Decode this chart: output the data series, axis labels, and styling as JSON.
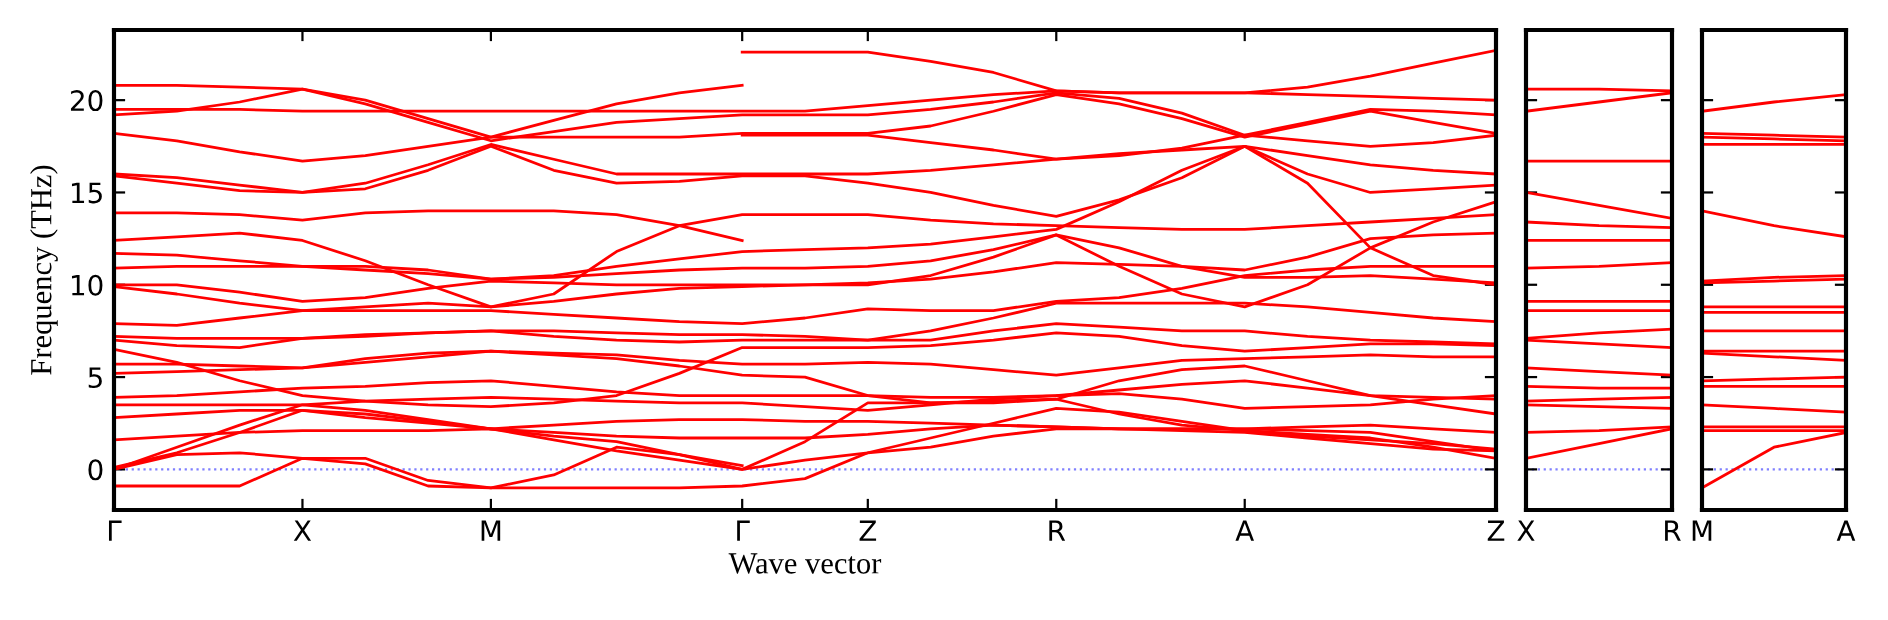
{
  "chart_data": [
    {
      "type": "line",
      "ylabel": "Frequency (THz)",
      "xlabel": "Wave vector",
      "color": "#ff0000",
      "line_style": "solid",
      "marker": "none",
      "grid": false,
      "legend": false,
      "categories": [
        "Γ",
        null,
        null,
        "X",
        null,
        null,
        "M",
        null,
        null,
        null,
        "Γ",
        null,
        "Z",
        null,
        null,
        "R",
        null,
        null,
        "A",
        null,
        null,
        null,
        "Z"
      ],
      "ylim": [
        -2.2,
        23.8
      ],
      "yticks": [
        0,
        5,
        10,
        15,
        20
      ],
      "ref_lines": [
        {
          "axis": "y",
          "value": 0,
          "color": "#8080ff",
          "line_style": "dotted"
        }
      ],
      "series": [
        {
          "values": [
            20.8,
            20.8,
            20.7,
            20.6,
            20.0,
            19.0,
            18.0,
            18.9,
            19.8,
            20.4,
            20.8,
            null,
            null,
            null,
            null,
            null,
            null,
            null,
            null,
            null,
            null,
            null,
            null
          ]
        },
        {
          "values": [
            null,
            null,
            null,
            null,
            null,
            null,
            null,
            null,
            null,
            null,
            22.6,
            22.6,
            22.6,
            22.1,
            21.5,
            20.5,
            20.4,
            20.4,
            20.4,
            20.7,
            21.3,
            22.0,
            22.7
          ]
        },
        {
          "values": [
            19.5,
            19.5,
            19.5,
            19.4,
            19.4,
            19.4,
            19.4,
            19.4,
            19.4,
            19.4,
            19.4,
            19.4,
            19.7,
            20.0,
            20.3,
            20.5,
            20.4,
            20.4,
            20.4,
            20.3,
            20.2,
            20.1,
            20.0
          ]
        },
        {
          "values": [
            19.2,
            19.4,
            19.9,
            20.6,
            19.8,
            18.8,
            17.8,
            18.3,
            18.8,
            19.0,
            19.2,
            19.2,
            19.2,
            19.5,
            19.9,
            20.4,
            20.1,
            19.3,
            18.1,
            18.8,
            19.5,
            19.4,
            19.2
          ]
        },
        {
          "values": [
            18.2,
            17.8,
            17.2,
            16.7,
            17.0,
            17.5,
            18.0,
            18.0,
            18.0,
            18.0,
            18.2,
            18.2,
            18.2,
            18.6,
            19.4,
            20.3,
            19.8,
            19.0,
            18.0,
            18.7,
            19.4,
            18.8,
            18.2
          ]
        },
        {
          "values": [
            null,
            null,
            null,
            null,
            null,
            null,
            null,
            null,
            null,
            null,
            18.1,
            18.1,
            18.1,
            17.7,
            17.3,
            16.8,
            17.0,
            17.4,
            18.1,
            17.8,
            17.5,
            17.7,
            18.1
          ]
        },
        {
          "values": [
            16.0,
            15.8,
            15.4,
            15.0,
            15.5,
            16.5,
            17.6,
            16.8,
            16.0,
            16.0,
            16.0,
            16.0,
            16.0,
            16.2,
            16.5,
            16.8,
            17.1,
            17.3,
            17.5,
            17.0,
            16.5,
            16.2,
            16.0
          ]
        },
        {
          "values": [
            15.9,
            15.5,
            15.1,
            15.0,
            15.2,
            16.2,
            17.5,
            16.2,
            15.5,
            15.6,
            15.9,
            15.9,
            15.5,
            15.0,
            14.3,
            13.7,
            14.6,
            15.8,
            17.5,
            16.0,
            15.0,
            15.2,
            15.4
          ]
        },
        {
          "values": [
            13.9,
            13.9,
            13.8,
            13.5,
            13.9,
            14.0,
            14.0,
            14.0,
            13.8,
            13.2,
            12.4,
            null,
            null,
            null,
            null,
            null,
            null,
            null,
            null,
            null,
            null,
            null,
            null
          ]
        },
        {
          "values": [
            12.4,
            12.6,
            12.8,
            12.4,
            11.3,
            10.0,
            8.8,
            9.5,
            11.8,
            13.2,
            13.8,
            13.8,
            13.8,
            13.5,
            13.3,
            13.2,
            13.1,
            13.0,
            13.0,
            13.2,
            13.4,
            13.6,
            13.8
          ]
        },
        {
          "values": [
            11.7,
            11.6,
            11.3,
            11.0,
            11.0,
            10.8,
            10.3,
            10.5,
            11.0,
            11.4,
            11.8,
            11.9,
            12.0,
            12.2,
            12.6,
            13.0,
            14.5,
            16.2,
            17.5,
            15.5,
            12.0,
            10.5,
            10.0
          ]
        },
        {
          "values": [
            10.9,
            11.0,
            11.0,
            11.0,
            10.8,
            10.6,
            10.3,
            10.4,
            10.6,
            10.8,
            10.9,
            10.9,
            11.0,
            11.3,
            11.9,
            12.7,
            12.0,
            11.0,
            10.4,
            10.4,
            10.5,
            10.3,
            10.1
          ]
        },
        {
          "values": [
            10.0,
            10.0,
            9.6,
            9.1,
            9.3,
            9.8,
            10.2,
            10.1,
            10.0,
            10.0,
            10.0,
            10.0,
            10.0,
            10.5,
            11.5,
            12.7,
            11.0,
            9.5,
            8.8,
            10.0,
            12.0,
            13.4,
            14.5
          ]
        },
        {
          "values": [
            9.9,
            9.5,
            9.0,
            8.6,
            8.8,
            9.0,
            8.8,
            9.1,
            9.5,
            9.8,
            9.9,
            10.0,
            10.1,
            10.3,
            10.7,
            11.2,
            11.1,
            11.0,
            10.8,
            11.5,
            12.5,
            12.7,
            12.8
          ]
        },
        {
          "values": [
            7.9,
            7.8,
            8.2,
            8.6,
            8.6,
            8.6,
            8.6,
            8.4,
            8.2,
            8.0,
            7.9,
            8.2,
            8.7,
            8.6,
            8.6,
            9.1,
            9.3,
            9.8,
            10.5,
            10.8,
            11.0,
            11.0,
            11.0
          ]
        },
        {
          "values": [
            7.2,
            7.1,
            7.1,
            7.1,
            7.2,
            7.4,
            7.5,
            7.5,
            7.4,
            7.3,
            7.3,
            7.2,
            7.0,
            7.5,
            8.2,
            9.0,
            9.0,
            9.0,
            9.0,
            8.8,
            8.5,
            8.2,
            8.0
          ]
        },
        {
          "values": [
            7.0,
            6.7,
            6.6,
            7.1,
            7.3,
            7.4,
            7.5,
            7.2,
            7.0,
            6.9,
            7.0,
            7.0,
            7.0,
            7.0,
            7.5,
            7.9,
            7.7,
            7.5,
            7.5,
            7.2,
            7.0,
            6.9,
            6.8
          ]
        },
        {
          "values": [
            6.5,
            5.8,
            4.8,
            4.0,
            3.7,
            3.5,
            3.4,
            3.6,
            4.0,
            5.2,
            6.6,
            6.6,
            6.6,
            6.7,
            7.0,
            7.4,
            7.2,
            6.7,
            6.4,
            6.6,
            6.8,
            6.8,
            6.7
          ]
        },
        {
          "values": [
            5.7,
            5.7,
            5.6,
            5.5,
            5.8,
            6.1,
            6.4,
            6.3,
            6.2,
            5.9,
            5.7,
            5.7,
            5.8,
            5.7,
            5.4,
            5.1,
            5.5,
            5.9,
            6.0,
            6.1,
            6.2,
            6.1,
            6.1
          ]
        },
        {
          "values": [
            5.2,
            5.3,
            5.4,
            5.5,
            6.0,
            6.3,
            6.4,
            6.2,
            6.0,
            5.6,
            5.1,
            5.0,
            4.0,
            3.6,
            3.6,
            3.8,
            4.8,
            5.4,
            5.6,
            4.8,
            4.0,
            3.9,
            3.8
          ]
        },
        {
          "values": [
            3.9,
            4.0,
            4.2,
            4.4,
            4.5,
            4.7,
            4.8,
            4.5,
            4.2,
            4.0,
            4.0,
            4.0,
            4.0,
            3.9,
            3.9,
            4.0,
            4.3,
            4.6,
            4.8,
            4.4,
            4.0,
            3.5,
            3.0
          ]
        },
        {
          "values": [
            3.5,
            3.5,
            3.5,
            3.5,
            3.7,
            3.8,
            3.9,
            3.8,
            3.7,
            3.6,
            3.6,
            3.4,
            3.2,
            3.5,
            3.8,
            4.0,
            4.1,
            3.8,
            3.3,
            3.4,
            3.5,
            3.8,
            4.0
          ]
        },
        {
          "values": [
            2.8,
            3.0,
            3.2,
            3.2,
            3.0,
            2.6,
            2.2,
            2.4,
            2.6,
            2.7,
            2.7,
            2.6,
            2.6,
            2.5,
            2.4,
            2.3,
            2.2,
            2.2,
            2.2,
            2.3,
            2.4,
            2.2,
            2.0
          ]
        },
        {
          "values": [
            1.6,
            1.8,
            2.0,
            2.1,
            2.1,
            2.1,
            2.2,
            2.0,
            1.8,
            1.7,
            1.7,
            1.7,
            1.9,
            2.2,
            2.4,
            2.3,
            2.2,
            2.2,
            2.2,
            2.1,
            2.0,
            1.5,
            1.0
          ]
        },
        {
          "values": [
            0,
            1.2,
            2.4,
            3.5,
            3.2,
            2.7,
            2.2,
            1.6,
            1.0,
            0.5,
            0,
            1.5,
            3.6,
            3.6,
            3.7,
            3.8,
            3.0,
            2.4,
            2.1,
            1.9,
            1.7,
            1.2,
            0.6
          ]
        },
        {
          "values": [
            0.1,
            0.9,
            2.0,
            3.2,
            2.8,
            2.5,
            2.2,
            1.8,
            1.5,
            0.8,
            0,
            0.5,
            0.9,
            1.7,
            2.5,
            3.3,
            3.1,
            2.6,
            2.1,
            1.8,
            1.6,
            1.4,
            1.1
          ]
        },
        {
          "values": [
            0,
            0.8,
            0.9,
            0.6,
            0.6,
            -0.6,
            -1.0,
            -0.3,
            1.2,
            0.8,
            0.2,
            null,
            null,
            null,
            null,
            null,
            null,
            null,
            null,
            null,
            null,
            null,
            null
          ]
        },
        {
          "values": [
            -0.9,
            -0.9,
            -0.9,
            0.6,
            0.3,
            -0.9,
            -1.0,
            -1.0,
            -1.0,
            -1.0,
            -0.9,
            -0.5,
            0.9,
            1.2,
            1.8,
            2.2,
            2.2,
            2.1,
            2.0,
            1.7,
            1.4,
            1.1,
            1.0
          ]
        }
      ]
    },
    {
      "type": "line",
      "color": "#ff0000",
      "line_style": "solid",
      "marker": "none",
      "grid": false,
      "legend": false,
      "tick_labels": "x",
      "categories": [
        "X",
        null,
        "R"
      ],
      "ylim": [
        -2.2,
        23.8
      ],
      "yticks": [
        {
          "value": 0,
          "label": null
        },
        {
          "value": 5,
          "label": null
        },
        {
          "value": 10,
          "label": null
        },
        {
          "value": 15,
          "label": null
        },
        {
          "value": 20,
          "label": null
        }
      ],
      "ref_lines": [
        {
          "axis": "y",
          "value": 0,
          "color": "#8080ff",
          "line_style": "dotted"
        }
      ],
      "series": [
        {
          "values": [
            20.6,
            20.6,
            20.5
          ]
        },
        {
          "values": [
            19.4,
            19.9,
            20.4
          ]
        },
        {
          "values": [
            16.7,
            16.7,
            16.7
          ]
        },
        {
          "values": [
            15.0,
            14.3,
            13.6
          ]
        },
        {
          "values": [
            13.4,
            13.2,
            13.1
          ]
        },
        {
          "values": [
            12.4,
            12.4,
            12.4
          ]
        },
        {
          "values": [
            10.9,
            11.0,
            11.2
          ]
        },
        {
          "values": [
            9.1,
            9.1,
            9.1
          ]
        },
        {
          "values": [
            8.6,
            8.6,
            8.6
          ]
        },
        {
          "values": [
            7.1,
            7.4,
            7.6
          ]
        },
        {
          "values": [
            7.0,
            6.8,
            6.6
          ]
        },
        {
          "values": [
            5.5,
            5.3,
            5.1
          ]
        },
        {
          "values": [
            4.5,
            4.4,
            4.4
          ]
        },
        {
          "values": [
            3.7,
            3.8,
            3.9
          ]
        },
        {
          "values": [
            3.5,
            3.4,
            3.3
          ]
        },
        {
          "values": [
            2.0,
            2.1,
            2.3
          ]
        },
        {
          "values": [
            0.6,
            1.4,
            2.2
          ]
        }
      ]
    },
    {
      "type": "line",
      "color": "#ff0000",
      "line_style": "solid",
      "marker": "none",
      "grid": false,
      "legend": false,
      "tick_labels": "x",
      "categories": [
        "M",
        null,
        "A"
      ],
      "ylim": [
        -2.2,
        23.8
      ],
      "yticks": [
        {
          "value": 0,
          "label": null
        },
        {
          "value": 5,
          "label": null
        },
        {
          "value": 10,
          "label": null
        },
        {
          "value": 15,
          "label": null
        },
        {
          "value": 20,
          "label": null
        }
      ],
      "ref_lines": [
        {
          "axis": "y",
          "value": 0,
          "color": "#8080ff",
          "line_style": "dotted"
        }
      ],
      "series": [
        {
          "values": [
            19.4,
            19.9,
            20.3
          ]
        },
        {
          "values": [
            18.2,
            18.1,
            18.0
          ]
        },
        {
          "values": [
            18.0,
            17.9,
            17.8
          ]
        },
        {
          "values": [
            17.6,
            17.6,
            17.6
          ]
        },
        {
          "values": [
            14.0,
            13.2,
            12.6
          ]
        },
        {
          "values": [
            10.2,
            10.4,
            10.5
          ]
        },
        {
          "values": [
            10.1,
            10.2,
            10.3
          ]
        },
        {
          "values": [
            8.8,
            8.8,
            8.8
          ]
        },
        {
          "values": [
            8.5,
            8.5,
            8.5
          ]
        },
        {
          "values": [
            7.5,
            7.5,
            7.5
          ]
        },
        {
          "values": [
            6.4,
            6.4,
            6.4
          ]
        },
        {
          "values": [
            6.3,
            6.1,
            5.9
          ]
        },
        {
          "values": [
            4.8,
            4.9,
            5.0
          ]
        },
        {
          "values": [
            4.5,
            4.5,
            4.5
          ]
        },
        {
          "values": [
            3.5,
            3.3,
            3.1
          ]
        },
        {
          "values": [
            2.3,
            2.3,
            2.3
          ]
        },
        {
          "values": [
            2.1,
            2.1,
            2.1
          ]
        },
        {
          "values": [
            -1.0,
            1.2,
            2.0
          ]
        }
      ]
    }
  ]
}
